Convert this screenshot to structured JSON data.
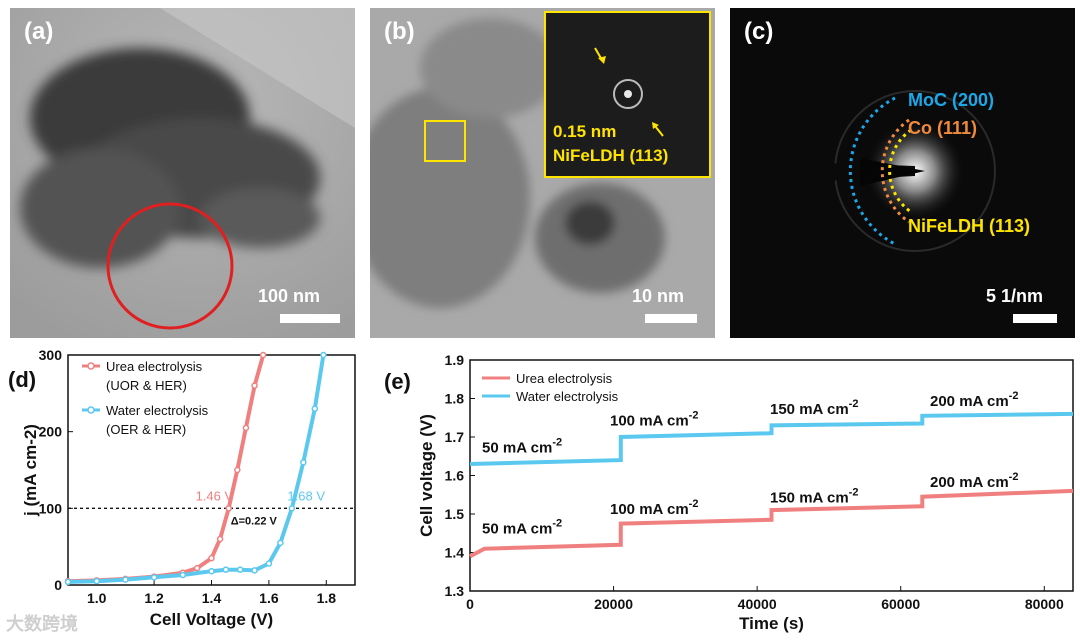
{
  "figure": {
    "panel_a": {
      "letter": "(a)",
      "scale": "100 nm"
    },
    "panel_b": {
      "letter": "(b)",
      "scale": "10 nm",
      "inset_spacing": "0.15 nm",
      "inset_phase": "NiFeLDH (113)"
    },
    "panel_c": {
      "letter": "(c)",
      "scale": "5 1/nm",
      "rings": [
        {
          "label": "MoC (200)",
          "color": "#1ea7e8"
        },
        {
          "label": "Co (111)",
          "color": "#f08a3c"
        },
        {
          "label": "NiFeLDH (113)",
          "color": "#ffe400"
        }
      ]
    },
    "panel_d": {
      "letter": "(d)",
      "legend": [
        {
          "label": "Urea electrolysis",
          "sub": "(UOR & HER)",
          "color": "#f08080"
        },
        {
          "label": "Water electrolysis",
          "sub": "(OER & HER)",
          "color": "#5bc8ef"
        }
      ],
      "annot_urea": "1.46 V",
      "annot_water": "1.68 V",
      "annot_delta": "Δ=0.22 V"
    },
    "panel_e": {
      "letter": "(e)",
      "legend": [
        {
          "label": "Urea electrolysis",
          "color": "#f08080"
        },
        {
          "label": "Water electrolysis",
          "color": "#5bc8ef"
        }
      ],
      "current_labels": [
        "50 mA cm",
        "100 mA cm",
        "150 mA cm",
        "200 mA cm"
      ],
      "sup": "-2"
    },
    "watermark": "大数跨境"
  },
  "chart_data": [
    {
      "type": "line",
      "panel": "(d)",
      "xlabel": "Cell Voltage (V)",
      "ylabel": "j (mA cm-2)",
      "xlim": [
        0.9,
        1.9
      ],
      "ylim": [
        0,
        300
      ],
      "xticks": [
        "1.0",
        "1.2",
        "1.4",
        "1.6",
        "1.8"
      ],
      "yticks": [
        "0",
        "100",
        "200",
        "300"
      ],
      "reference_line": 100,
      "series": [
        {
          "name": "Urea electrolysis (UOR & HER)",
          "x": [
            0.9,
            1.0,
            1.1,
            1.2,
            1.3,
            1.35,
            1.4,
            1.43,
            1.46,
            1.49,
            1.52,
            1.55,
            1.58
          ],
          "y": [
            5,
            6,
            8,
            11,
            16,
            22,
            35,
            60,
            100,
            150,
            205,
            260,
            300
          ]
        },
        {
          "name": "Water electrolysis (OER & HER)",
          "x": [
            0.9,
            1.0,
            1.1,
            1.2,
            1.3,
            1.4,
            1.45,
            1.5,
            1.55,
            1.6,
            1.64,
            1.68,
            1.72,
            1.76,
            1.79
          ],
          "y": [
            4,
            5,
            7,
            10,
            13,
            18,
            20,
            20,
            19,
            28,
            55,
            100,
            160,
            230,
            300
          ]
        }
      ]
    },
    {
      "type": "line",
      "panel": "(e)",
      "xlabel": "Time (s)",
      "ylabel": "Cell voltage (V)",
      "xlim": [
        0,
        84000
      ],
      "ylim": [
        1.3,
        1.9
      ],
      "xticks": [
        "0",
        "20000",
        "40000",
        "60000",
        "80000"
      ],
      "yticks": [
        "1.3",
        "1.4",
        "1.5",
        "1.6",
        "1.7",
        "1.8",
        "1.9"
      ],
      "series": [
        {
          "name": "Urea electrolysis",
          "x": [
            0,
            2000,
            21000,
            21001,
            42000,
            42001,
            63000,
            63001,
            84000
          ],
          "y": [
            1.39,
            1.41,
            1.42,
            1.475,
            1.485,
            1.51,
            1.52,
            1.545,
            1.56
          ]
        },
        {
          "name": "Water electrolysis",
          "x": [
            0,
            21000,
            21001,
            42000,
            42001,
            63000,
            63001,
            84000
          ],
          "y": [
            1.63,
            1.64,
            1.7,
            1.71,
            1.73,
            1.735,
            1.755,
            1.76
          ]
        }
      ]
    }
  ]
}
